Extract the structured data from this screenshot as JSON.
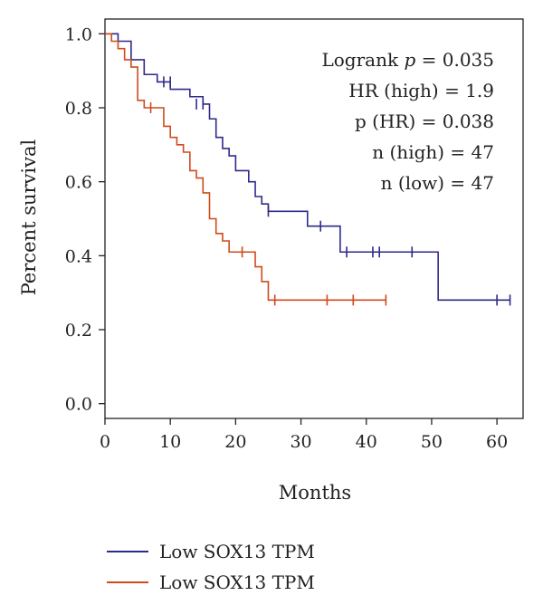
{
  "chart_data": {
    "type": "line",
    "title": "",
    "xlabel": "Months",
    "ylabel": "Percent survival",
    "xlim": [
      0,
      64
    ],
    "ylim": [
      -0.04,
      1.04
    ],
    "xticks": [
      0,
      10,
      20,
      30,
      40,
      50,
      60
    ],
    "yticks": [
      0.0,
      0.2,
      0.4,
      0.6,
      0.8,
      1.0
    ],
    "xtick_labels": [
      "0",
      "10",
      "20",
      "30",
      "40",
      "50",
      "60"
    ],
    "ytick_labels": [
      "0.0",
      "0.2",
      "0.4",
      "0.6",
      "0.8",
      "1.0"
    ],
    "grid": false,
    "legend_position": "bottom",
    "annotations": [
      {
        "prefix": "Logrank ",
        "italic": "p",
        "suffix": " = 0.035"
      },
      {
        "prefix": "HR (high) = 1.9",
        "italic": "",
        "suffix": ""
      },
      {
        "prefix": "p (HR) = 0.038",
        "italic": "",
        "suffix": ""
      },
      {
        "prefix": "n (high) = 47",
        "italic": "",
        "suffix": ""
      },
      {
        "prefix": "n (low) = 47",
        "italic": "",
        "suffix": ""
      }
    ],
    "series": [
      {
        "name": "Low SOX13 TPM",
        "color": "#2e2a8c",
        "steps": [
          [
            0,
            1.0
          ],
          [
            2,
            0.98
          ],
          [
            4,
            0.93
          ],
          [
            6,
            0.89
          ],
          [
            8,
            0.87
          ],
          [
            10,
            0.85
          ],
          [
            13,
            0.83
          ],
          [
            15,
            0.81
          ],
          [
            16,
            0.77
          ],
          [
            17,
            0.72
          ],
          [
            18,
            0.69
          ],
          [
            19,
            0.67
          ],
          [
            20,
            0.63
          ],
          [
            22,
            0.6
          ],
          [
            23,
            0.56
          ],
          [
            24,
            0.54
          ],
          [
            25,
            0.52
          ],
          [
            31,
            0.48
          ],
          [
            36,
            0.41
          ],
          [
            51,
            0.28
          ],
          [
            62,
            0.28
          ]
        ],
        "censors": [
          [
            9,
            0.87
          ],
          [
            10,
            0.87
          ],
          [
            14,
            0.81
          ],
          [
            15,
            0.81
          ],
          [
            25,
            0.52
          ],
          [
            33,
            0.48
          ],
          [
            37,
            0.41
          ],
          [
            41,
            0.41
          ],
          [
            42,
            0.41
          ],
          [
            47,
            0.41
          ],
          [
            60,
            0.28
          ],
          [
            62,
            0.28
          ]
        ]
      },
      {
        "name": "Low SOX13 TPM",
        "color": "#d04a1c",
        "steps": [
          [
            0,
            1.0
          ],
          [
            1,
            0.98
          ],
          [
            2,
            0.96
          ],
          [
            3,
            0.93
          ],
          [
            4,
            0.91
          ],
          [
            5,
            0.82
          ],
          [
            6,
            0.8
          ],
          [
            9,
            0.75
          ],
          [
            10,
            0.72
          ],
          [
            11,
            0.7
          ],
          [
            12,
            0.68
          ],
          [
            13,
            0.63
          ],
          [
            14,
            0.61
          ],
          [
            15,
            0.57
          ],
          [
            16,
            0.5
          ],
          [
            17,
            0.46
          ],
          [
            18,
            0.44
          ],
          [
            19,
            0.41
          ],
          [
            21,
            0.41
          ],
          [
            23,
            0.37
          ],
          [
            24,
            0.33
          ],
          [
            25,
            0.28
          ],
          [
            43,
            0.28
          ]
        ],
        "censors": [
          [
            7,
            0.8
          ],
          [
            21,
            0.41
          ],
          [
            26,
            0.28
          ],
          [
            34,
            0.28
          ],
          [
            38,
            0.28
          ],
          [
            43,
            0.28
          ]
        ]
      }
    ]
  },
  "legend": {
    "items": [
      {
        "label": "Low SOX13 TPM",
        "color": "#2e2a8c"
      },
      {
        "label": "Low SOX13 TPM",
        "color": "#d04a1c"
      }
    ]
  }
}
